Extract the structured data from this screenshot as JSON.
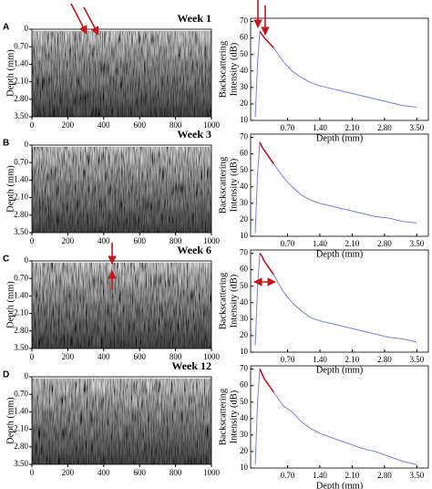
{
  "chart_data": [
    {
      "type": "image",
      "panel": "A",
      "title": "Week 1",
      "ylabel": "Depth (mm)",
      "xlim": [
        0,
        1000
      ],
      "xticks": [
        0,
        200,
        400,
        600,
        800,
        1000
      ],
      "ylim": [
        0,
        3.5
      ],
      "yticks": [
        0,
        {
          "value": 0.7,
          "label": "0.70"
        },
        {
          "value": 1.4,
          "label": "1.40"
        },
        {
          "value": 2.1,
          "label": "2.10"
        },
        {
          "value": 2.8,
          "label": "2.80"
        },
        {
          "value": 3.5,
          "label": "3.50"
        }
      ]
    },
    {
      "type": "line",
      "xlabel": "Depth (mm)",
      "ylabel": [
        "Backscattering",
        "Intensity (dB)"
      ],
      "xlim": [
        -0.1,
        3.75
      ],
      "xticks": [
        {
          "value": 0.7,
          "label": "0.70"
        },
        {
          "value": 1.4,
          "label": "1.40"
        },
        {
          "value": 2.1,
          "label": "2.10"
        },
        {
          "value": 2.8,
          "label": "2.80"
        },
        {
          "value": 3.5,
          "label": "3.50"
        }
      ],
      "ylim": [
        10,
        72
      ],
      "yticks": [
        10,
        20,
        30,
        40,
        50,
        60,
        70
      ],
      "x": [
        0,
        0.05,
        0.1,
        0.15,
        0.2,
        0.3,
        0.4,
        0.5,
        0.6,
        0.8,
        1.0,
        1.2,
        1.4,
        1.7,
        2.0,
        2.3,
        2.6,
        2.9,
        3.2,
        3.5
      ],
      "series": [
        {
          "color": "#7b7fe0",
          "values": [
            12,
            45,
            64,
            62,
            60,
            57,
            54,
            50,
            46,
            40,
            36,
            33,
            31,
            29,
            27,
            25,
            23,
            21,
            19,
            18
          ]
        },
        {
          "color": "#c0181c",
          "values": [
            null,
            null,
            64,
            62,
            60,
            57,
            54,
            null,
            null,
            null,
            null,
            null,
            null,
            null,
            null,
            null,
            null,
            null,
            null,
            null
          ]
        }
      ]
    },
    {
      "type": "image",
      "panel": "B",
      "title": "Week 3",
      "ylabel": "Depth (mm)",
      "xlim": [
        0,
        1000
      ],
      "xticks": [
        0,
        200,
        400,
        600,
        800,
        1000
      ],
      "ylim": [
        0,
        3.5
      ],
      "yticks": [
        0,
        {
          "value": 0.7,
          "label": "0.70"
        },
        {
          "value": 1.4,
          "label": "1.40"
        },
        {
          "value": 2.1,
          "label": "2.10"
        },
        {
          "value": 2.8,
          "label": "2.80"
        },
        {
          "value": 3.5,
          "label": "3.50"
        }
      ]
    },
    {
      "type": "line",
      "xlabel": "Depth (mm)",
      "ylabel": [
        "Backscattering",
        "Intensity (dB)"
      ],
      "xlim": [
        -0.1,
        3.75
      ],
      "xticks": [
        {
          "value": 0.7,
          "label": "0.70"
        },
        {
          "value": 1.4,
          "label": "1.40"
        },
        {
          "value": 2.1,
          "label": "2.10"
        },
        {
          "value": 2.8,
          "label": "2.80"
        },
        {
          "value": 3.5,
          "label": "3.50"
        }
      ],
      "ylim": [
        10,
        72
      ],
      "yticks": [
        10,
        20,
        30,
        40,
        50,
        60,
        70
      ],
      "x": [
        0,
        0.05,
        0.1,
        0.15,
        0.2,
        0.3,
        0.4,
        0.5,
        0.6,
        0.8,
        1.0,
        1.2,
        1.4,
        1.7,
        2.0,
        2.3,
        2.6,
        2.9,
        3.2,
        3.5
      ],
      "series": [
        {
          "color": "#7b7fe0",
          "values": [
            12,
            48,
            67,
            64,
            62,
            58,
            54,
            50,
            46,
            40,
            35,
            32,
            30,
            28,
            26,
            24,
            22,
            21,
            19,
            18
          ]
        },
        {
          "color": "#c0181c",
          "values": [
            null,
            null,
            67,
            64,
            62,
            58,
            54,
            null,
            null,
            null,
            null,
            null,
            null,
            null,
            null,
            null,
            null,
            null,
            null,
            null
          ]
        }
      ]
    },
    {
      "type": "image",
      "panel": "C",
      "title": "Week 6",
      "ylabel": "Depth (mm)",
      "xlim": [
        0,
        1000
      ],
      "xticks": [
        0,
        200,
        400,
        600,
        800,
        1000
      ],
      "ylim": [
        0,
        3.5
      ],
      "yticks": [
        0,
        {
          "value": 0.7,
          "label": "0.70"
        },
        {
          "value": 1.4,
          "label": "1.40"
        },
        {
          "value": 2.1,
          "label": "2.10"
        },
        {
          "value": 2.8,
          "label": "2.80"
        },
        {
          "value": 3.5,
          "label": "3.50"
        }
      ]
    },
    {
      "type": "line",
      "xlabel": "Depth (mm)",
      "ylabel": [
        "Backscattering",
        "Intensity (dB)"
      ],
      "xlim": [
        -0.1,
        3.75
      ],
      "xticks": [
        {
          "value": 0.7,
          "label": "0.70"
        },
        {
          "value": 1.4,
          "label": "1.40"
        },
        {
          "value": 2.1,
          "label": "2.10"
        },
        {
          "value": 2.8,
          "label": "2.80"
        },
        {
          "value": 3.5,
          "label": "3.50"
        }
      ],
      "ylim": [
        10,
        72
      ],
      "yticks": [
        10,
        20,
        30,
        40,
        50,
        60,
        70
      ],
      "x": [
        0,
        0.05,
        0.1,
        0.15,
        0.2,
        0.3,
        0.4,
        0.5,
        0.6,
        0.8,
        1.0,
        1.2,
        1.4,
        1.7,
        2.0,
        2.3,
        2.6,
        2.9,
        3.2,
        3.5
      ],
      "series": [
        {
          "color": "#7b7fe0",
          "values": [
            14,
            50,
            70,
            68,
            65,
            61,
            57,
            52,
            47,
            40,
            35,
            31,
            29,
            27,
            25,
            23,
            21,
            19,
            18,
            16
          ]
        },
        {
          "color": "#c0181c",
          "values": [
            null,
            null,
            70,
            68,
            65,
            61,
            57,
            null,
            null,
            null,
            null,
            null,
            null,
            null,
            null,
            null,
            null,
            null,
            null,
            null
          ]
        }
      ]
    },
    {
      "type": "image",
      "panel": "D",
      "title": "Week 12",
      "ylabel": "Depth (mm)",
      "xlim": [
        0,
        1000
      ],
      "xticks": [
        0,
        200,
        400,
        600,
        800,
        1000
      ],
      "ylim": [
        0,
        3.5
      ],
      "yticks": [
        0,
        {
          "value": 0.7,
          "label": "0.70"
        },
        {
          "value": 1.4,
          "label": "1.40"
        },
        {
          "value": 2.1,
          "label": "2.10"
        },
        {
          "value": 2.8,
          "label": "2.80"
        },
        {
          "value": 3.5,
          "label": "3.50"
        }
      ]
    },
    {
      "type": "line",
      "xlabel": "Depth (mm)",
      "ylabel": [
        "Backscattering",
        "Intensity (dB)"
      ],
      "xlim": [
        -0.1,
        3.75
      ],
      "xticks": [
        {
          "value": 0.7,
          "label": "0.70"
        },
        {
          "value": 1.4,
          "label": "1.40"
        },
        {
          "value": 2.1,
          "label": "2.10"
        },
        {
          "value": 2.8,
          "label": "2.80"
        },
        {
          "value": 3.5,
          "label": "3.50"
        }
      ],
      "ylim": [
        10,
        72
      ],
      "yticks": [
        10,
        20,
        30,
        40,
        50,
        60,
        70
      ],
      "x": [
        0,
        0.05,
        0.1,
        0.15,
        0.2,
        0.3,
        0.4,
        0.5,
        0.6,
        0.8,
        1.0,
        1.2,
        1.4,
        1.7,
        2.0,
        2.3,
        2.6,
        2.9,
        3.2,
        3.5
      ],
      "series": [
        {
          "color": "#7b7fe0",
          "values": [
            12,
            50,
            70,
            67,
            64,
            60,
            56,
            52,
            48,
            44,
            38,
            34,
            31,
            28,
            25,
            22,
            20,
            17,
            14,
            12
          ]
        },
        {
          "color": "#c0181c",
          "values": [
            null,
            null,
            70,
            67,
            64,
            60,
            56,
            null,
            null,
            null,
            null,
            null,
            null,
            null,
            null,
            null,
            null,
            null,
            null,
            null
          ]
        }
      ]
    }
  ]
}
